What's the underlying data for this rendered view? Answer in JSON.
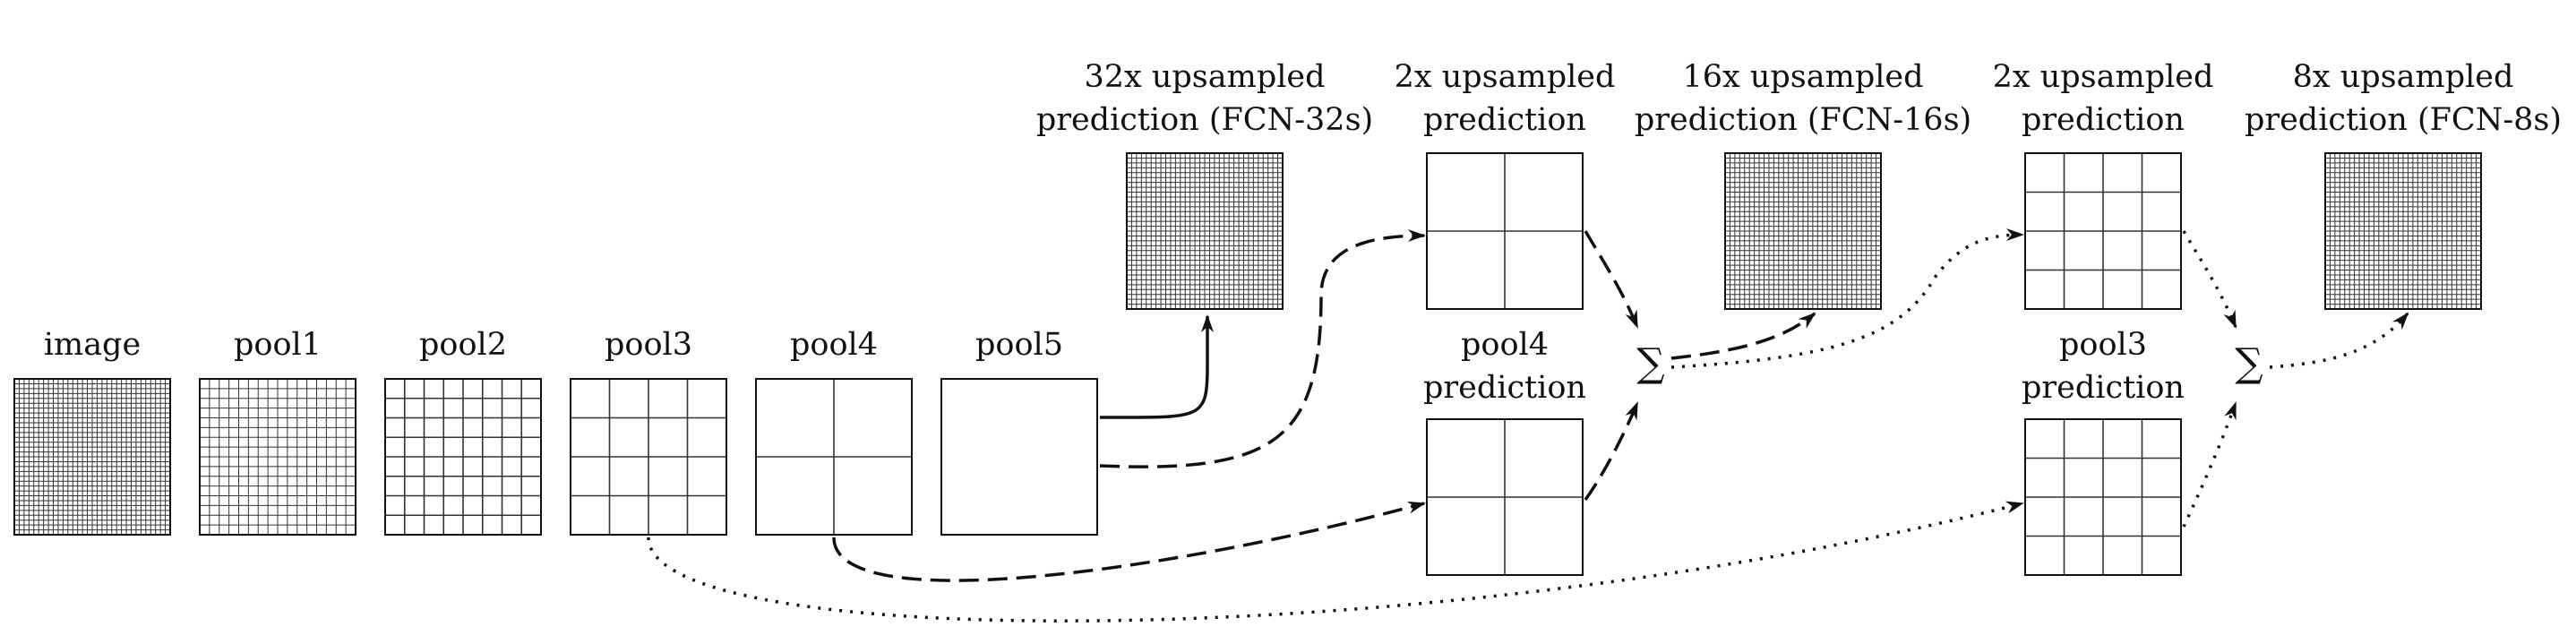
{
  "pools": [
    {
      "label": "image",
      "cells": 32
    },
    {
      "label": "pool1",
      "cells": 16
    },
    {
      "label": "pool2",
      "cells": 8
    },
    {
      "label": "pool3",
      "cells": 4
    },
    {
      "label": "pool4",
      "cells": 2
    },
    {
      "label": "pool5",
      "cells": 1
    }
  ],
  "top": [
    {
      "line1": "32x upsampled",
      "line2": "prediction (FCN-32s)",
      "cells": 32
    },
    {
      "line1": "2x upsampled",
      "line2": "prediction",
      "cells": 2
    },
    {
      "line1": "16x upsampled",
      "line2": "prediction (FCN-16s)",
      "cells": 32
    },
    {
      "line1": "2x upsampled",
      "line2": "prediction",
      "cells": 4
    },
    {
      "line1": "8x upsampled",
      "line2": "prediction (FCN-8s)",
      "cells": 32
    }
  ],
  "mid": [
    {
      "line1": "pool4",
      "line2": "prediction",
      "cells": 2
    },
    {
      "line1": "pool3",
      "line2": "prediction",
      "cells": 4
    }
  ],
  "sum_symbol": "∑",
  "colors": {
    "stroke": "#111111",
    "grid": "#333333",
    "background": "#ffffff"
  }
}
